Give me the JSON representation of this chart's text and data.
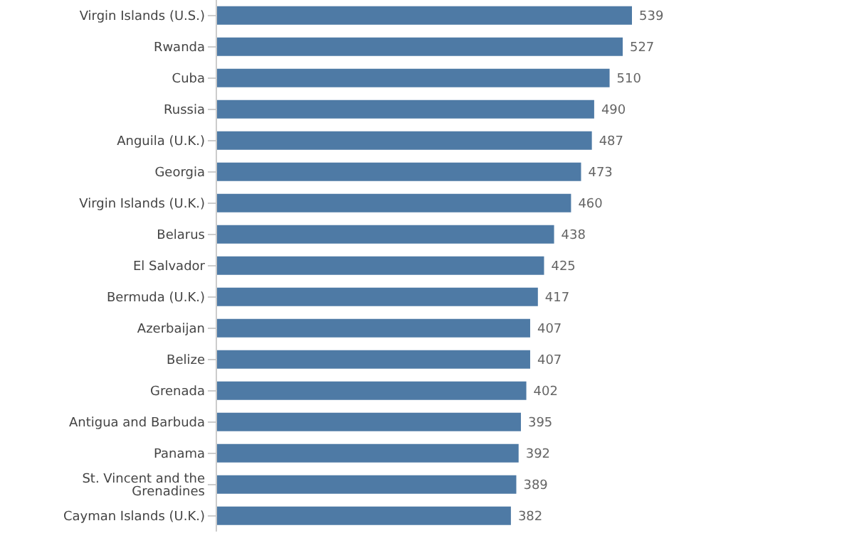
{
  "chart_data": {
    "type": "bar",
    "orientation": "horizontal",
    "categories": [
      "Virgin Islands (U.S.)",
      "Rwanda",
      "Cuba",
      "Russia",
      "Anguila (U.K.)",
      "Georgia",
      "Virgin Islands (U.K.)",
      "Belarus",
      "El Salvador",
      "Bermuda (U.K.)",
      "Azerbaijan",
      "Belize",
      "Grenada",
      "Antigua and Barbuda",
      "Panama",
      "St. Vincent and the Grenadines",
      "Cayman Islands (U.K.)"
    ],
    "values": [
      539,
      527,
      510,
      490,
      487,
      473,
      460,
      438,
      425,
      417,
      407,
      407,
      402,
      395,
      392,
      389,
      382
    ],
    "color": "#4e7aa5",
    "data_labels": true,
    "tick_labels": "y"
  }
}
